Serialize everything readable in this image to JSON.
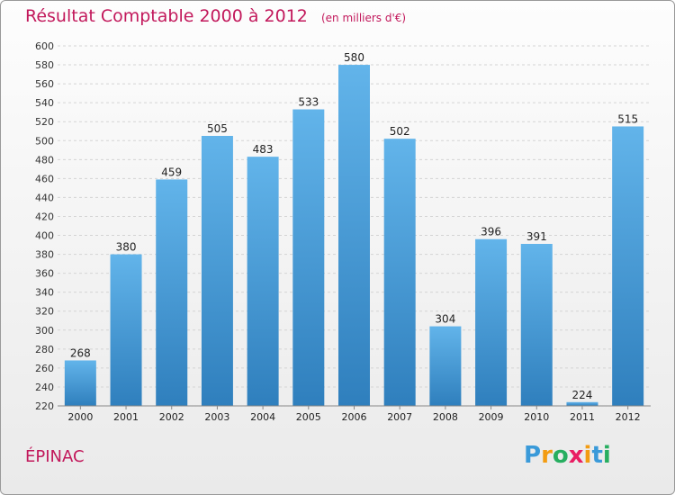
{
  "header": {
    "title": "Résultat Comptable 2000 à 2012",
    "subtitle": "(en milliers d'€)"
  },
  "footer": {
    "commune": "ÉPINAC",
    "brand": "Proxiti",
    "brand_letters": [
      "P",
      "r",
      "o",
      "x",
      "i",
      "t",
      "i"
    ],
    "brand_colors": [
      "#3a9ad9",
      "#f39c12",
      "#27ae60",
      "#e91e63",
      "#f39c12",
      "#3a9ad9",
      "#27ae60"
    ]
  },
  "colors": {
    "bar_top": "#62b4ea",
    "bar_bottom": "#2f7fbd",
    "grid": "#d4d4d4",
    "accent": "#c2185b"
  },
  "chart_data": {
    "type": "bar",
    "title": "Résultat Comptable 2000 à 2012",
    "subtitle": "(en milliers d'€)",
    "xlabel": "",
    "ylabel": "",
    "categories": [
      "2000",
      "2001",
      "2002",
      "2003",
      "2004",
      "2005",
      "2006",
      "2007",
      "2008",
      "2009",
      "2010",
      "2011",
      "2012"
    ],
    "values": [
      268,
      380,
      459,
      505,
      483,
      533,
      580,
      502,
      304,
      396,
      391,
      224,
      515
    ],
    "ylim": [
      220,
      600
    ],
    "ytick_step": 20,
    "grid": true,
    "legend": "none"
  }
}
